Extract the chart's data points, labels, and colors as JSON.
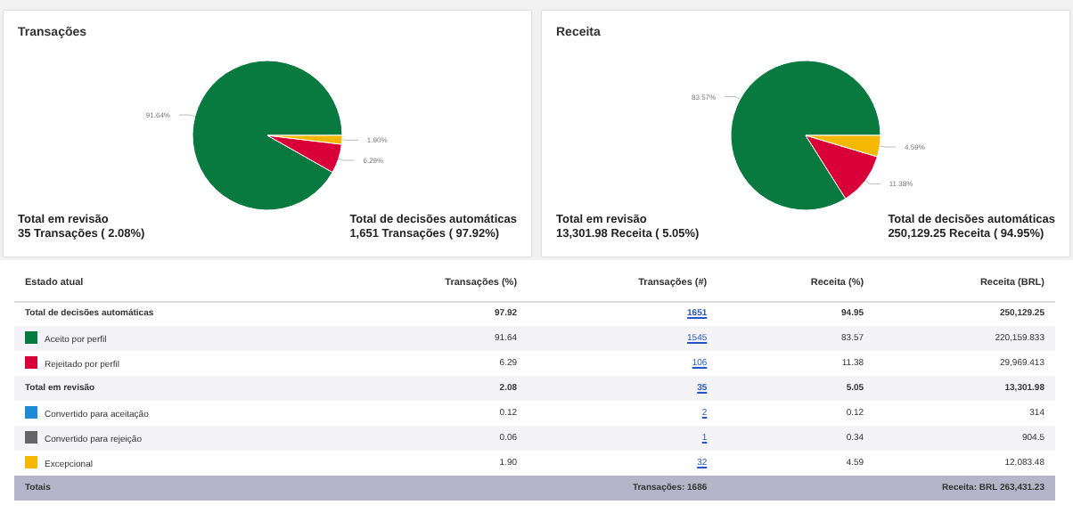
{
  "chart_data": [
    {
      "type": "pie",
      "title": "Transações",
      "categories": [
        null,
        null,
        null
      ],
      "values": [
        91.64,
        6.29,
        1.9
      ],
      "colors": [
        "#087a40",
        "#d9003a",
        "#f5b800"
      ],
      "value_labels": [
        "91.64%",
        "6.29%",
        "1.90%"
      ],
      "annotations": [
        "Total em revisão\n35 Transações ( 2.08%)",
        "Total de decisões automáticas\n1,651 Transações ( 97.92%)"
      ]
    },
    {
      "type": "pie",
      "title": "Receita",
      "categories": [
        null,
        null,
        null
      ],
      "values": [
        83.57,
        11.38,
        4.59
      ],
      "colors": [
        "#087a40",
        "#d9003a",
        "#f5b800"
      ],
      "value_labels": [
        "83.57%",
        "11.38%",
        "4.59%"
      ],
      "annotations": [
        "Total em revisão\n13,301.98 Receita ( 5.05%)",
        "Total de decisões automáticas\n250,129.25 Receita ( 94.95%)"
      ]
    },
    {
      "type": "other",
      "colors": [
        null,
        "#087a40",
        "#d9003a",
        null,
        "#1f8ad6",
        "#666666",
        "#f5b800"
      ],
      "annotations": [
        "Estado atual",
        "Transações (%)",
        "Transações (#)",
        "Receita (%)",
        "Receita (BRL)",
        "Total de decisões automáticas",
        "97.92",
        "1651",
        "94.95",
        "250,129.25",
        "Aceito por perfil",
        "91.64",
        "1545",
        "83.57",
        "220,159.833",
        "Rejeitado por perfil",
        "6.29",
        "106",
        "11.38",
        "29,969.413",
        "Total em revisão",
        "2.08",
        "35",
        "5.05",
        "13,301.98",
        "Convertido para aceitação",
        "0.12",
        "2",
        "0.12",
        "314",
        "Convertido para rejeição",
        "0.06",
        "1",
        "0.34",
        "904.5",
        "Excepcional",
        "1.90",
        "32",
        "4.59",
        "12,083.48",
        "Totais",
        "Transações: 1686",
        "Receita: BRL 263,431.23"
      ]
    }
  ]
}
